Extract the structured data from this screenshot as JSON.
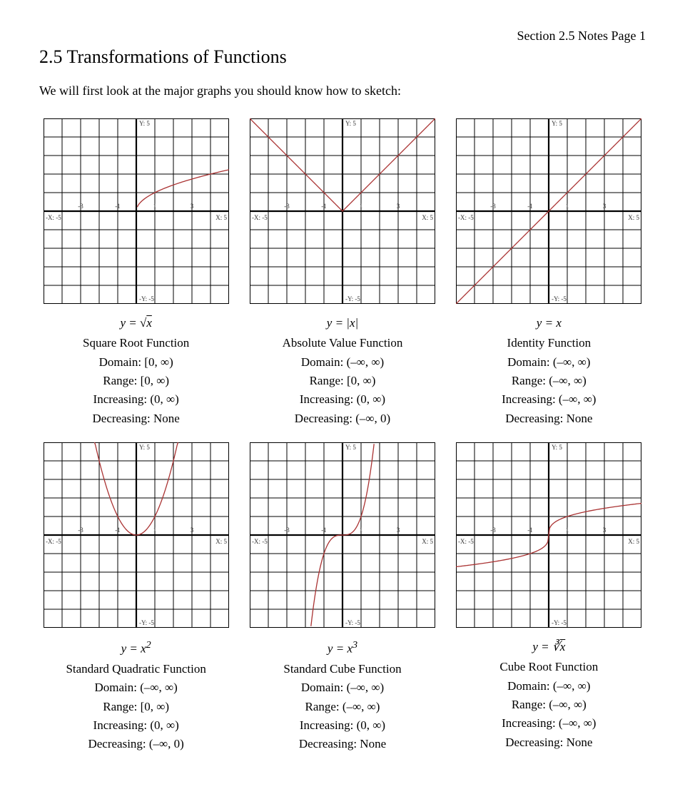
{
  "page": {
    "section_label": "Section 2.5 Notes  Page 1",
    "title": "2.5  Transformations of Functions",
    "intro": "We will first look at the major graphs you should know how to sketch:"
  },
  "graph_style": {
    "size": 260,
    "range": [
      -5,
      5
    ],
    "grid_color": "#000000",
    "grid_stroke": 1,
    "axis_stroke": 2.2,
    "curve_color": "#aa3333",
    "curve_stroke": 1.3,
    "tick_font_size": 9,
    "tick_color": "#333333",
    "x_ticks": [
      -3,
      -1,
      1,
      3
    ],
    "axis_labels": {
      "x_neg": "-X: -5",
      "x_pos": "X: 5",
      "y_neg": "-Y: -5",
      "y_pos": "Y: 5"
    },
    "label_font_size": 9
  },
  "functions": [
    {
      "id": "sqrt",
      "equation_html": "<i>y</i> = √<span class='sqrt-sym'><i>x</i></span>",
      "name": "Square Root Function",
      "domain": "Domain: [0,  ∞)",
      "range": "Range:    [0,  ∞)",
      "increasing": "Increasing: (0,  ∞)",
      "decreasing": "Decreasing: None"
    },
    {
      "id": "abs",
      "equation_html": "<i>y</i> = |<i>x</i>|",
      "name": "Absolute Value Function",
      "domain": "Domain: (–∞,  ∞)",
      "range": "Range: [0,  ∞)",
      "increasing": "Increasing: (0,  ∞)",
      "decreasing": "Decreasing:  (–∞,  0)"
    },
    {
      "id": "identity",
      "equation_html": "<i>y</i> = <i>x</i>",
      "name": "Identity Function",
      "domain": "Domain:  (–∞,  ∞)",
      "range": "Range:  (–∞,  ∞)",
      "increasing": "Increasing:  (–∞,  ∞)",
      "decreasing": "Decreasing: None"
    },
    {
      "id": "quad",
      "equation_html": "<i>y</i> = <i>x</i><sup>2</sup>",
      "name": "Standard Quadratic Function",
      "domain": "Domain:  (–∞,  ∞)",
      "range": "Range:  [0,  ∞)",
      "increasing": "Increasing: (0,  ∞)",
      "decreasing": "Decreasing:  (–∞,  0)"
    },
    {
      "id": "cube",
      "equation_html": "<i>y</i> = <i>x</i><sup>3</sup>",
      "name": "Standard Cube Function",
      "domain": "Domain:  (–∞,  ∞)",
      "range": "Range:  (–∞,  ∞)",
      "increasing": "Increasing: (0,  ∞)",
      "decreasing": "Decreasing:  None"
    },
    {
      "id": "cbrt",
      "equation_html": "<i>y</i> = ∛<span class='sqrt-sym'><i>x</i></span>",
      "name": "Cube Root Function",
      "domain": "Domain:  (–∞,  ∞)",
      "range": "Range:  (–∞,  ∞)",
      "increasing": "Increasing:  (–∞,  ∞)",
      "decreasing": "Decreasing: None"
    }
  ]
}
